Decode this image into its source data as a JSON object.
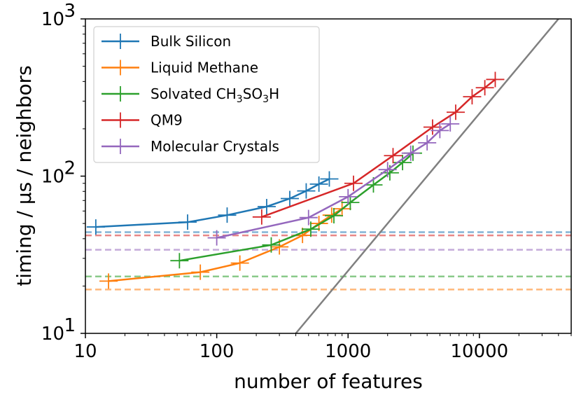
{
  "chart_data": {
    "type": "line",
    "xlabel": "number of features",
    "ylabel": "timing / μs / neighbors",
    "x_scale": "log",
    "y_scale": "log",
    "xlim": [
      10,
      50000
    ],
    "ylim": [
      10,
      1000
    ],
    "x_ticks": [
      {
        "value": 10,
        "label": "10"
      },
      {
        "value": 100,
        "label": "100"
      },
      {
        "value": 1000,
        "label": "1000"
      },
      {
        "value": 10000,
        "label": "10000"
      }
    ],
    "y_ticks": [
      {
        "value": 10,
        "base": "10",
        "exp": "1"
      },
      {
        "value": 100,
        "base": "10",
        "exp": "2"
      },
      {
        "value": 1000,
        "base": "10",
        "exp": "3"
      }
    ],
    "grid": false,
    "legend_position": "top-left",
    "series": [
      {
        "name": "Bulk Silicon",
        "color": "#1f77b4",
        "baseline": 44,
        "points": [
          [
            12,
            47.5
          ],
          [
            60,
            51
          ],
          [
            120,
            56.5
          ],
          [
            240,
            64
          ],
          [
            360,
            72
          ],
          [
            480,
            80.5
          ],
          [
            600,
            89
          ],
          [
            720,
            96
          ]
        ]
      },
      {
        "name": "Liquid Methane",
        "color": "#ff7f0e",
        "baseline": 19,
        "points": [
          [
            15,
            21.5
          ],
          [
            75,
            24.5
          ],
          [
            150,
            28
          ],
          [
            300,
            35.5
          ],
          [
            450,
            42
          ],
          [
            600,
            50
          ],
          [
            750,
            56.5
          ],
          [
            900,
            62
          ]
        ]
      },
      {
        "name": "Solvated CH3SO3H",
        "name_parts": {
          "pre": "Solvated CH",
          "sub1": "3",
          "mid": "SO",
          "sub2": "3",
          "post": "H"
        },
        "color": "#2ca02c",
        "baseline": 23,
        "points": [
          [
            52,
            29
          ],
          [
            260,
            36.5
          ],
          [
            520,
            46
          ],
          [
            780,
            56
          ],
          [
            1040,
            68
          ],
          [
            1560,
            88
          ],
          [
            2080,
            105
          ],
          [
            2600,
            122
          ],
          [
            3120,
            140
          ]
        ]
      },
      {
        "name": "QM9",
        "color": "#d62728",
        "baseline": 42,
        "points": [
          [
            220,
            55
          ],
          [
            1100,
            90
          ],
          [
            2200,
            135
          ],
          [
            4400,
            205
          ],
          [
            6600,
            255
          ],
          [
            8800,
            320
          ],
          [
            11000,
            365
          ],
          [
            13200,
            412
          ]
        ]
      },
      {
        "name": "Molecular Crystals",
        "color": "#9467bd",
        "baseline": 34,
        "points": [
          [
            100,
            40.5
          ],
          [
            500,
            54.5
          ],
          [
            1000,
            74
          ],
          [
            2000,
            110
          ],
          [
            3000,
            140
          ],
          [
            4000,
            163
          ],
          [
            5000,
            195
          ],
          [
            6000,
            215
          ]
        ]
      }
    ],
    "reference_line": {
      "color": "#808080",
      "points": [
        [
          400,
          10
        ],
        [
          40000,
          1000
        ]
      ]
    }
  }
}
